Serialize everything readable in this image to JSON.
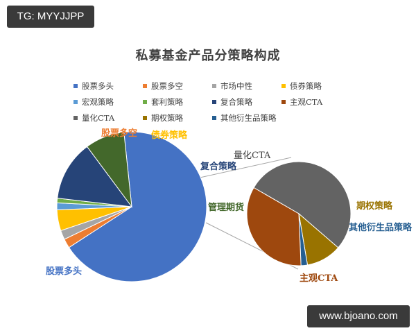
{
  "watermarks": {
    "top_left": "TG: MYYJJPP",
    "bottom_right": "www.bjoano.com"
  },
  "chart_data": {
    "type": "pie",
    "subtype": "pie-of-pie",
    "title": "私募基金产品分策略构成",
    "legend_position": "top",
    "legend": [
      {
        "label": "股票多头",
        "color": "#4472c4"
      },
      {
        "label": "股票多空",
        "color": "#ed7d31"
      },
      {
        "label": "市场中性",
        "color": "#a5a5a5"
      },
      {
        "label": "债券策略",
        "color": "#ffc000"
      },
      {
        "label": "宏观策略",
        "color": "#5b9bd5"
      },
      {
        "label": "套利策略",
        "color": "#70ad47"
      },
      {
        "label": "复合策略",
        "color": "#264478"
      },
      {
        "label": "主观CTA",
        "color": "#9e480e"
      },
      {
        "label": "量化CTA",
        "color": "#636363"
      },
      {
        "label": "期权策略",
        "color": "#997300"
      },
      {
        "label": "其他衍生品策略",
        "color": "#255e91"
      }
    ],
    "main_pie": {
      "slices": [
        {
          "label": "股票多头",
          "value": 67.5,
          "color": "#4472c4",
          "show_label": true
        },
        {
          "label": "股票多空",
          "value": 2.0,
          "color": "#ed7d31",
          "show_label": true
        },
        {
          "label": "市场中性",
          "value": 2.0,
          "color": "#a5a5a5",
          "show_label": false
        },
        {
          "label": "债券策略",
          "value": 4.5,
          "color": "#ffc000",
          "show_label": true
        },
        {
          "label": "宏观策略",
          "value": 1.5,
          "color": "#5b9bd5",
          "show_label": false
        },
        {
          "label": "套利策略",
          "value": 1.0,
          "color": "#70ad47",
          "show_label": false
        },
        {
          "label": "复合策略",
          "value": 13.0,
          "color": "#264478",
          "show_label": true
        },
        {
          "label": "管理期货",
          "value": 8.5,
          "color": "#43682b",
          "show_label": true
        }
      ]
    },
    "secondary_pie": {
      "parent": "管理期货",
      "slices": [
        {
          "label": "量化CTA",
          "value": 53,
          "color": "#636363"
        },
        {
          "label": "期权策略",
          "value": 11,
          "color": "#997300"
        },
        {
          "label": "其他衍生品策略",
          "value": 2,
          "color": "#255e91"
        },
        {
          "label": "主观CTA",
          "value": 34,
          "color": "#9e480e"
        }
      ]
    }
  },
  "labels": {
    "stock_long": "股票多头",
    "stock_long_short": "股票多空",
    "bond": "债券策略",
    "composite": "复合策略",
    "managed_futures": "管理期货",
    "quant_cta": "量化CTA",
    "options": "期权策略",
    "other_derivatives": "其他衍生品策略",
    "subjective_cta": "主观CTA"
  }
}
